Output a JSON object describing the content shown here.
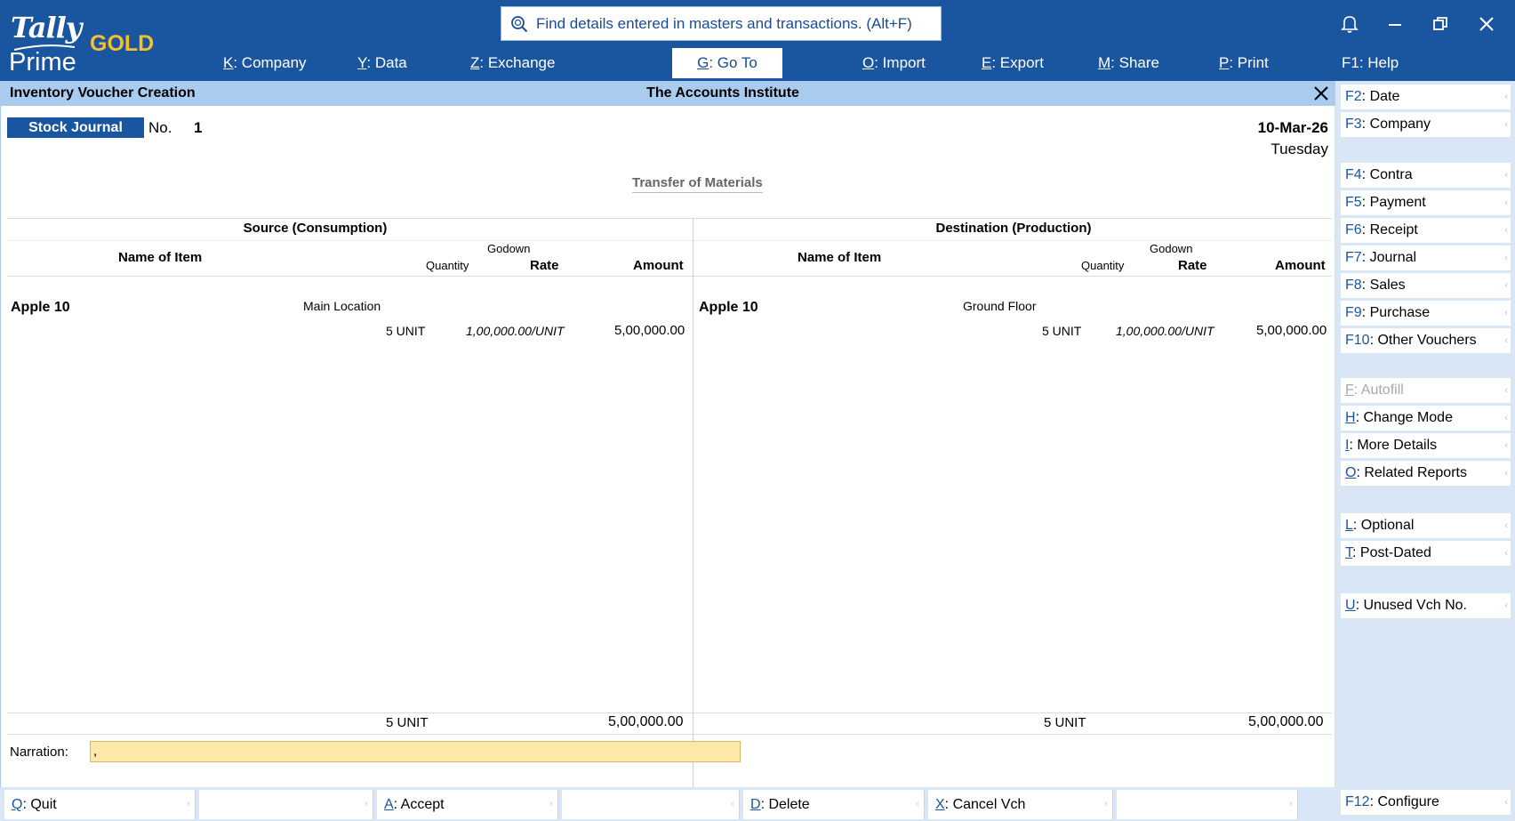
{
  "app": {
    "logo_top": "Tally",
    "logo_bottom": "Prime",
    "edition": "GOLD"
  },
  "search": {
    "text": "Find details entered in masters and transactions. (Alt+F)"
  },
  "menu": {
    "company": {
      "key": "K",
      "rest": ": Company"
    },
    "data": {
      "key": "Y",
      "rest": ": Data"
    },
    "exchange": {
      "key": "Z",
      "rest": ": Exchange"
    },
    "goto": {
      "key": "G",
      "rest": ": Go To"
    },
    "import": {
      "key": "O",
      "rest": ": Import"
    },
    "export": {
      "key": "E",
      "rest": ": Export"
    },
    "share": {
      "key": "M",
      "rest": ": Share"
    },
    "print": {
      "key": "P",
      "rest": ": Print"
    },
    "help": {
      "label": "F1: Help"
    }
  },
  "titlebar": {
    "screen": "Inventory Voucher Creation",
    "company": "The Accounts Institute"
  },
  "voucher": {
    "type": "Stock Journal",
    "no_label": "No.",
    "no": "1",
    "date": "10-Mar-26",
    "day": "Tuesday",
    "subtitle": "Transfer of Materials"
  },
  "source": {
    "heading": "Source (Consumption)",
    "col_name": "Name of Item",
    "col_godown": "Godown",
    "col_qty": "Quantity",
    "col_rate": "Rate",
    "col_amount": "Amount",
    "rows": [
      {
        "item": "Apple 10",
        "godown": "Main Location",
        "qty": "5 UNIT",
        "rate": "1,00,000.00/UNIT",
        "amount": "5,00,000.00"
      }
    ],
    "total_qty": "5 UNIT",
    "total_amount": "5,00,000.00"
  },
  "destination": {
    "heading": "Destination (Production)",
    "col_name": "Name of Item",
    "col_godown": "Godown",
    "col_qty": "Quantity",
    "col_rate": "Rate",
    "col_amount": "Amount",
    "rows": [
      {
        "item": "Apple 10",
        "godown": "Ground Floor",
        "qty": "5 UNIT",
        "rate": "1,00,000.00/UNIT",
        "amount": "5,00,000.00"
      }
    ],
    "total_qty": "5 UNIT",
    "total_amount": "5,00,000.00"
  },
  "narration": {
    "label": "Narration:",
    "value": ","
  },
  "bottom": {
    "quit": {
      "key": "Q",
      "rest": ": Quit"
    },
    "accept": {
      "key": "A",
      "rest": ": Accept"
    },
    "delete": {
      "key": "D",
      "rest": ": Delete"
    },
    "cancel": {
      "key": "X",
      "rest": ": Cancel Vch"
    }
  },
  "right_panel": {
    "date": {
      "key": "F2",
      "rest": ": Date"
    },
    "company": {
      "key": "F3",
      "rest": ": Company"
    },
    "contra": {
      "key": "F4",
      "rest": ": Contra"
    },
    "payment": {
      "key": "F5",
      "rest": ": Payment"
    },
    "receipt": {
      "key": "F6",
      "rest": ": Receipt"
    },
    "journal": {
      "key": "F7",
      "rest": ": Journal"
    },
    "sales": {
      "key": "F8",
      "rest": ": Sales"
    },
    "purchase": {
      "key": "F9",
      "rest": ": Purchase"
    },
    "other": {
      "key": "F10",
      "rest": ": Other Vouchers"
    },
    "autofill": {
      "key": "F",
      "rest": ": Autofill"
    },
    "change_mode": {
      "key": "H",
      "rest": ": Change Mode"
    },
    "more_details": {
      "key": "I",
      "rest": ": More Details"
    },
    "related": {
      "key": "O",
      "rest": ": Related Reports"
    },
    "optional": {
      "key": "L",
      "rest": ": Optional"
    },
    "post_dated": {
      "key": "T",
      "rest": ": Post-Dated"
    },
    "unused": {
      "key": "U",
      "rest": ": Unused Vch No."
    },
    "configure": {
      "key": "F12",
      "rest": ": Configure"
    }
  },
  "colors": {
    "header_blue": "#1a55a0",
    "title_strip": "#a8cbee",
    "narration_bg": "#fde8a8",
    "gold": "#f5c030"
  }
}
